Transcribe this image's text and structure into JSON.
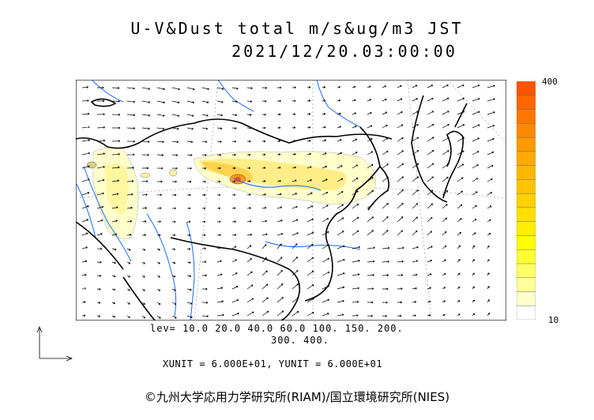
{
  "title": {
    "line1": "U-V&Dust total m/s&ug/m3 JST",
    "line2": "2021/12/20.03:00:00"
  },
  "colorbar": {
    "max_label": "400",
    "min_label": "10",
    "colors": [
      "#ffffff",
      "#ffffcc",
      "#ffff99",
      "#ffff66",
      "#ffff33",
      "#ffff00",
      "#ffee00",
      "#ffe000",
      "#ffd200",
      "#ffc400",
      "#ffb700",
      "#ffaa00",
      "#ff9900",
      "#ff8800",
      "#ff7700",
      "#ff6600",
      "#ff5500"
    ]
  },
  "levels": {
    "line1": "lev= 10.0 20.0 40.0 60.0 100. 150. 200.",
    "line2": "300. 400."
  },
  "units_text": "XUNIT = 6.000E+01, YUNIT = 6.000E+01",
  "credit": "©九州大学応用力学研究所(RIAM)/国立環境研究所(NIES)",
  "map_style": {
    "coast_color": "#000000",
    "river_color": "#1a66ff",
    "dust_light": "#ffffcc",
    "dust_mid": "#ffee66",
    "dust_high": "#ff9933",
    "dust_peak": "#ff5500"
  }
}
